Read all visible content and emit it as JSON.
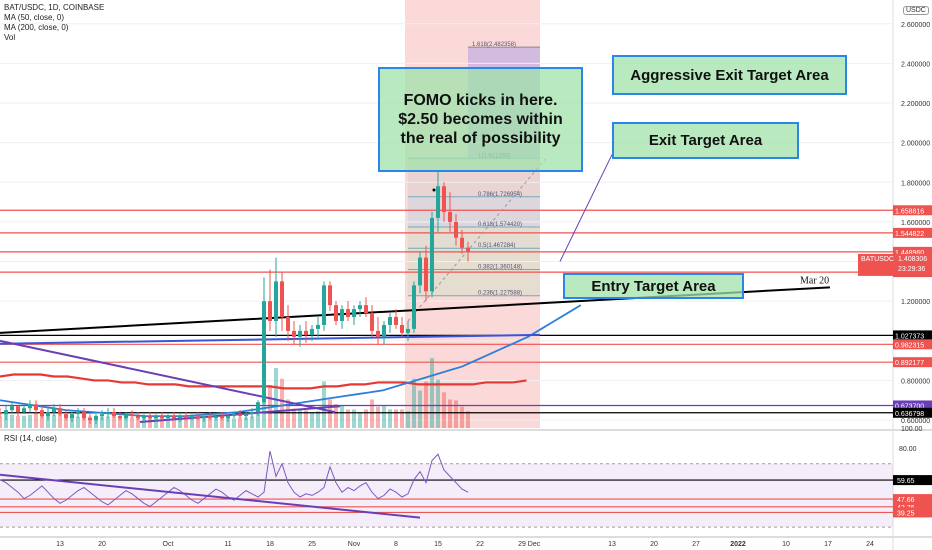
{
  "legend": {
    "symbol": "BAT/USDC, 1D, COINBASE",
    "ma50": "MA (50, close, 0)",
    "ma200": "MA (200, close, 0)",
    "vol": "Vol",
    "rsi": "RSI (14, close)"
  },
  "currency_badge": "USDC",
  "annotations": {
    "fomo": "FOMO kicks in here. $2.50 becomes within the real of possibility",
    "aggressive": "Aggressive Exit Target Area",
    "exit": "Exit Target Area",
    "entry": "Entry Target Area",
    "mar20": "Mar 20"
  },
  "colors": {
    "up": "#26a69a",
    "down": "#ef5350",
    "ma50": "#2f7ed8",
    "ma200": "#e53935",
    "trend": "#000000",
    "purple": "#6a3fb5",
    "box_border": "#2a86e8",
    "box_fill": "#a0e1aa"
  },
  "chart_data": {
    "type": "candlestick",
    "price_axis": {
      "min": 0.56,
      "max": 2.72,
      "ticks": [
        "2.600000",
        "2.400000",
        "2.200000",
        "2.000000",
        "1.800000",
        "1.600000",
        "1.400000",
        "1.200000",
        "1.000000",
        "0.800000",
        "0.600000"
      ]
    },
    "x_axis": {
      "ticks": [
        {
          "label": "13",
          "day": 0
        },
        {
          "label": "20",
          "day": 7
        },
        {
          "label": "Oct",
          "day": 18
        },
        {
          "label": "11",
          "day": 28
        },
        {
          "label": "18",
          "day": 35
        },
        {
          "label": "25",
          "day": 42
        },
        {
          "label": "Nov",
          "day": 49
        },
        {
          "label": "8",
          "day": 56
        },
        {
          "label": "15",
          "day": 63
        },
        {
          "label": "22",
          "day": 70
        },
        {
          "label": "29",
          "day": 77
        },
        {
          "label": "Dec",
          "day": 79
        },
        {
          "label": "13",
          "day": 92
        },
        {
          "label": "20",
          "day": 99
        },
        {
          "label": "27",
          "day": 106
        },
        {
          "label": "2022",
          "day": 113
        },
        {
          "label": "10",
          "day": 121
        },
        {
          "label": "17",
          "day": 128
        },
        {
          "label": "24",
          "day": 135
        }
      ]
    },
    "candles": [
      [
        0.64,
        0.66,
        0.61,
        0.63
      ],
      [
        0.63,
        0.67,
        0.6,
        0.65
      ],
      [
        0.65,
        0.69,
        0.63,
        0.67
      ],
      [
        0.67,
        0.66,
        0.62,
        0.64
      ],
      [
        0.64,
        0.68,
        0.63,
        0.66
      ],
      [
        0.66,
        0.7,
        0.64,
        0.68
      ],
      [
        0.68,
        0.7,
        0.63,
        0.65
      ],
      [
        0.65,
        0.67,
        0.61,
        0.62
      ],
      [
        0.62,
        0.66,
        0.6,
        0.64
      ],
      [
        0.64,
        0.68,
        0.62,
        0.66
      ],
      [
        0.66,
        0.68,
        0.62,
        0.63
      ],
      [
        0.63,
        0.65,
        0.6,
        0.61
      ],
      [
        0.61,
        0.64,
        0.59,
        0.63
      ],
      [
        0.63,
        0.66,
        0.61,
        0.64
      ],
      [
        0.64,
        0.66,
        0.6,
        0.61
      ],
      [
        0.61,
        0.63,
        0.58,
        0.6
      ],
      [
        0.6,
        0.63,
        0.58,
        0.62
      ],
      [
        0.62,
        0.65,
        0.6,
        0.63
      ],
      [
        0.63,
        0.66,
        0.61,
        0.64
      ],
      [
        0.64,
        0.66,
        0.61,
        0.62
      ],
      [
        0.62,
        0.64,
        0.6,
        0.61
      ],
      [
        0.61,
        0.64,
        0.6,
        0.63
      ],
      [
        0.63,
        0.65,
        0.61,
        0.62
      ],
      [
        0.62,
        0.64,
        0.6,
        0.61
      ],
      [
        0.61,
        0.63,
        0.59,
        0.62
      ],
      [
        0.62,
        0.64,
        0.6,
        0.61
      ],
      [
        0.61,
        0.63,
        0.59,
        0.62
      ],
      [
        0.62,
        0.64,
        0.6,
        0.61
      ],
      [
        0.61,
        0.63,
        0.6,
        0.62
      ],
      [
        0.62,
        0.64,
        0.6,
        0.61
      ],
      [
        0.61,
        0.63,
        0.59,
        0.62
      ],
      [
        0.62,
        0.64,
        0.6,
        0.61
      ],
      [
        0.61,
        0.63,
        0.6,
        0.62
      ],
      [
        0.62,
        0.64,
        0.6,
        0.61
      ],
      [
        0.61,
        0.63,
        0.59,
        0.62
      ],
      [
        0.62,
        0.64,
        0.6,
        0.61
      ],
      [
        0.61,
        0.63,
        0.6,
        0.62
      ],
      [
        0.62,
        0.64,
        0.6,
        0.61
      ],
      [
        0.61,
        0.63,
        0.59,
        0.62
      ],
      [
        0.62,
        0.64,
        0.61,
        0.63
      ],
      [
        0.63,
        0.65,
        0.61,
        0.62
      ],
      [
        0.62,
        0.64,
        0.6,
        0.63
      ],
      [
        0.63,
        0.66,
        0.61,
        0.64
      ],
      [
        0.64,
        0.7,
        0.62,
        0.69
      ],
      [
        0.69,
        1.32,
        0.68,
        1.2
      ],
      [
        1.2,
        1.36,
        1.05,
        1.1
      ],
      [
        1.1,
        1.42,
        1.02,
        1.3
      ],
      [
        1.3,
        1.35,
        1.05,
        1.12
      ],
      [
        1.12,
        1.18,
        1.0,
        1.05
      ],
      [
        1.05,
        1.1,
        0.98,
        1.02
      ],
      [
        1.02,
        1.08,
        0.97,
        1.05
      ],
      [
        1.05,
        1.1,
        0.99,
        1.03
      ],
      [
        1.03,
        1.08,
        1.0,
        1.06
      ],
      [
        1.06,
        1.12,
        1.02,
        1.08
      ],
      [
        1.08,
        1.3,
        1.05,
        1.28
      ],
      [
        1.28,
        1.3,
        1.15,
        1.18
      ],
      [
        1.18,
        1.2,
        1.08,
        1.1
      ],
      [
        1.1,
        1.18,
        1.06,
        1.16
      ],
      [
        1.16,
        1.2,
        1.1,
        1.12
      ],
      [
        1.12,
        1.18,
        1.08,
        1.16
      ],
      [
        1.16,
        1.2,
        1.12,
        1.18
      ],
      [
        1.18,
        1.22,
        1.12,
        1.14
      ],
      [
        1.14,
        1.18,
        1.02,
        1.05
      ],
      [
        1.05,
        1.12,
        0.98,
        1.02
      ],
      [
        1.02,
        1.1,
        0.98,
        1.08
      ],
      [
        1.08,
        1.14,
        1.04,
        1.12
      ],
      [
        1.12,
        1.16,
        1.06,
        1.08
      ],
      [
        1.08,
        1.12,
        1.02,
        1.04
      ],
      [
        1.04,
        1.1,
        1.0,
        1.06
      ],
      [
        1.06,
        1.3,
        1.04,
        1.28
      ],
      [
        1.28,
        1.45,
        1.24,
        1.42
      ],
      [
        1.42,
        1.48,
        1.2,
        1.25
      ],
      [
        1.25,
        1.65,
        1.22,
        1.62
      ],
      [
        1.62,
        1.86,
        1.55,
        1.78
      ],
      [
        1.78,
        1.8,
        1.6,
        1.65
      ],
      [
        1.65,
        1.75,
        1.55,
        1.6
      ],
      [
        1.6,
        1.64,
        1.48,
        1.52
      ],
      [
        1.52,
        1.56,
        1.44,
        1.47
      ],
      [
        1.47,
        1.5,
        1.4,
        1.45
      ]
    ],
    "ma50": [
      0.7,
      0.69,
      0.68,
      0.67,
      0.66,
      0.65,
      0.645,
      0.64,
      0.635,
      0.63,
      0.625,
      0.62,
      0.62,
      0.62,
      0.62,
      0.625,
      0.63,
      0.635,
      0.64,
      0.65,
      0.66,
      0.67,
      0.68,
      0.69,
      0.7,
      0.71,
      0.72,
      0.73,
      0.74,
      0.75,
      0.77,
      0.79,
      0.81,
      0.83,
      0.85,
      0.87,
      0.9,
      0.93,
      0.96,
      0.99,
      1.02,
      1.06,
      1.1,
      1.14,
      1.18
    ],
    "ma50_start_day": 35,
    "ma200": [
      0.82,
      0.83,
      0.83,
      0.83,
      0.82,
      0.82,
      0.81,
      0.8,
      0.8,
      0.79,
      0.79,
      0.78,
      0.78,
      0.78,
      0.77,
      0.77,
      0.77,
      0.77,
      0.77,
      0.77,
      0.77,
      0.76,
      0.76,
      0.76,
      0.77,
      0.77,
      0.78,
      0.78,
      0.79,
      0.79,
      0.79,
      0.78,
      0.78,
      0.78,
      0.78,
      0.78,
      0.79,
      0.79,
      0.79,
      0.8
    ],
    "ma200_start_day": 0,
    "price_levels": [
      {
        "label": "1.658816",
        "value": 1.658816,
        "color": "#ef5350"
      },
      {
        "label": "1.544822",
        "value": 1.544822,
        "color": "#ef5350"
      },
      {
        "label": "1.448960",
        "value": 1.44896,
        "color": "#ef5350"
      },
      {
        "label": "1.346795",
        "value": 1.346795,
        "color": "#ef5350"
      },
      {
        "label": "1.027373",
        "value": 1.027373,
        "color": "#000000"
      },
      {
        "label": "0.982315",
        "value": 0.982315,
        "color": "#ef5350"
      },
      {
        "label": "0.892177",
        "value": 0.892177,
        "color": "#ef5350"
      },
      {
        "label": "0.673700",
        "value": 0.6737,
        "color": "#6a3fb5"
      },
      {
        "label": "0.636798",
        "value": 0.636798,
        "color": "#000000"
      }
    ],
    "current_price": {
      "symbol": "BATUSDC",
      "price": "1.408306",
      "countdown": "23:29:36",
      "value": 1.408306
    },
    "fibonacci": [
      {
        "label": "1.618(2.482358)",
        "value": 2.482358
      },
      {
        "label": "1(1.921253)",
        "value": 1.921253
      },
      {
        "label": "0.786(1.726954)",
        "value": 1.726954
      },
      {
        "label": "0.618(1.574420)",
        "value": 1.57442
      },
      {
        "label": "0.5(1.467284)",
        "value": 1.467284
      },
      {
        "label": "0.382(1.360148)",
        "value": 1.360148
      },
      {
        "label": "0.236(1.227588)",
        "value": 1.227588
      }
    ],
    "volume_axis_label": "100.00",
    "rsi": {
      "ticks": [
        "80.00",
        "59.65",
        "47.66",
        "42.76",
        "39.25"
      ],
      "upper": 70,
      "lower": 30,
      "levels": [
        {
          "label": "59.65",
          "value": 59.65
        },
        {
          "label": "47.66",
          "value": 47.66
        },
        {
          "label": "42.76",
          "value": 42.76
        },
        {
          "label": "39.25",
          "value": 39.25
        }
      ],
      "values": [
        60,
        58,
        55,
        52,
        48,
        50,
        53,
        56,
        52,
        48,
        45,
        47,
        50,
        53,
        55,
        52,
        49,
        46,
        44,
        47,
        50,
        53,
        51,
        48,
        45,
        43,
        46,
        49,
        52,
        55,
        53,
        50,
        47,
        45,
        48,
        51,
        54,
        52,
        49,
        47,
        50,
        53,
        51,
        49,
        52,
        78,
        62,
        70,
        58,
        52,
        49,
        51,
        50,
        52,
        55,
        68,
        58,
        52,
        55,
        53,
        56,
        58,
        52,
        48,
        50,
        54,
        52,
        49,
        51,
        60,
        65,
        58,
        72,
        76,
        66,
        62,
        58,
        54,
        52
      ]
    }
  }
}
